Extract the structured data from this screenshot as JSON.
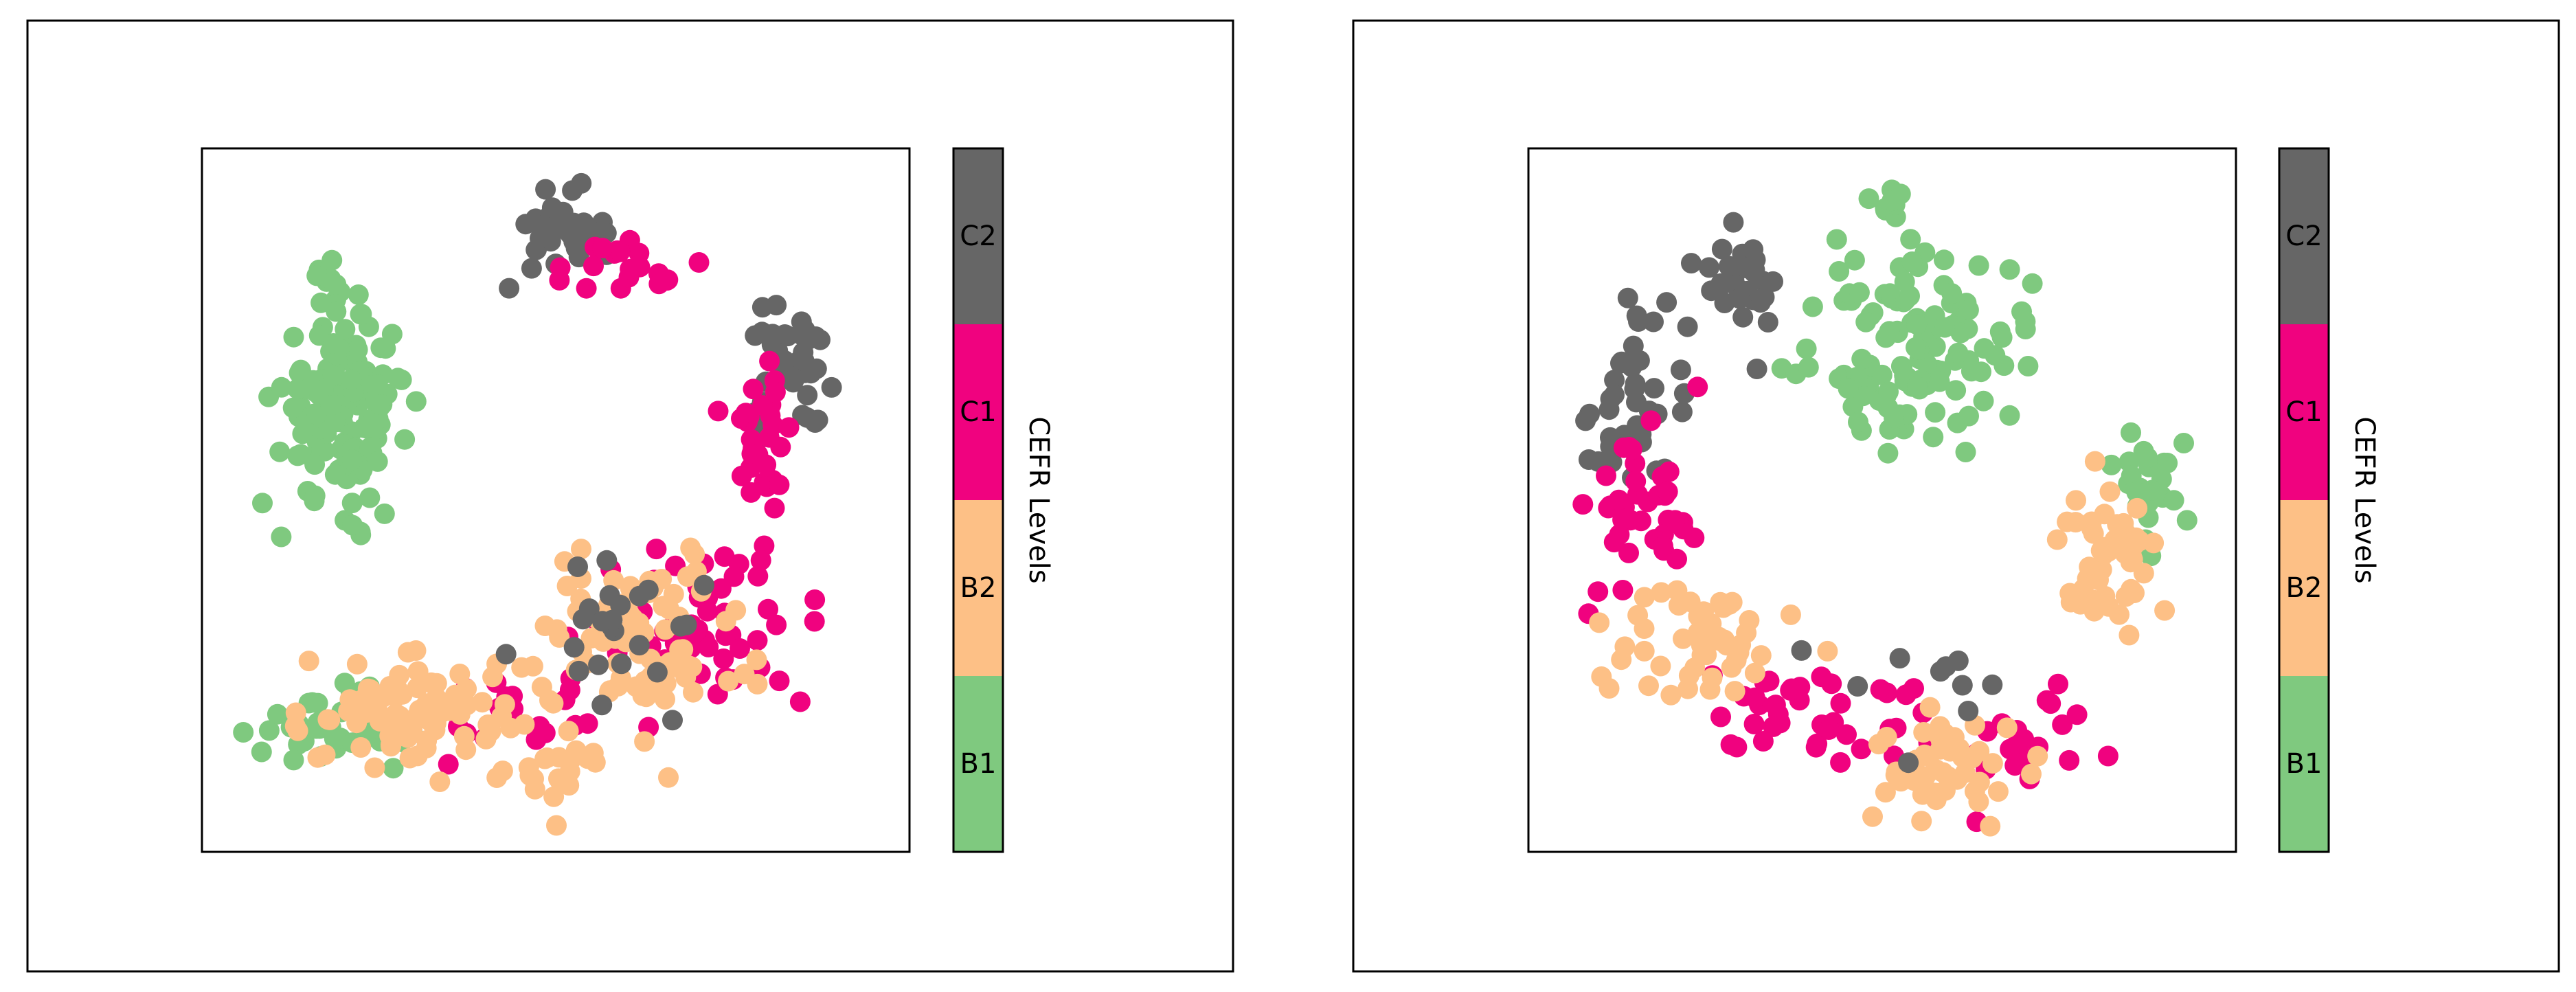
{
  "chart_data": [
    {
      "type": "scatter",
      "title": "",
      "xlabel": "",
      "ylabel": "",
      "grid": false,
      "axes_ticks": false,
      "colorbar": {
        "label": "CEFR Levels",
        "levels": [
          {
            "name": "C2",
            "color": "#666666"
          },
          {
            "name": "C1",
            "color": "#f0027f"
          },
          {
            "name": "B2",
            "color": "#fdc086"
          },
          {
            "name": "B1",
            "color": "#7fc97f"
          }
        ]
      },
      "clusters": [
        {
          "level": "B1",
          "x": 0.2,
          "y": 0.63,
          "sx": 0.08,
          "sy": 0.12,
          "n": 150
        },
        {
          "level": "B1",
          "x": 0.18,
          "y": 0.82,
          "sx": 0.02,
          "sy": 0.03,
          "n": 10
        },
        {
          "level": "B1",
          "x": 0.18,
          "y": 0.17,
          "sx": 0.1,
          "sy": 0.05,
          "n": 40
        },
        {
          "level": "C2",
          "x": 0.52,
          "y": 0.88,
          "sx": 0.08,
          "sy": 0.05,
          "n": 40
        },
        {
          "level": "C2",
          "x": 0.83,
          "y": 0.68,
          "sx": 0.05,
          "sy": 0.08,
          "n": 40
        },
        {
          "level": "C1",
          "x": 0.6,
          "y": 0.83,
          "sx": 0.1,
          "sy": 0.05,
          "n": 20
        },
        {
          "level": "C1",
          "x": 0.8,
          "y": 0.6,
          "sx": 0.08,
          "sy": 0.1,
          "n": 30
        },
        {
          "level": "C1",
          "x": 0.7,
          "y": 0.32,
          "sx": 0.14,
          "sy": 0.1,
          "n": 60
        },
        {
          "level": "C1",
          "x": 0.45,
          "y": 0.2,
          "sx": 0.1,
          "sy": 0.06,
          "n": 20
        },
        {
          "level": "B2",
          "x": 0.3,
          "y": 0.2,
          "sx": 0.14,
          "sy": 0.07,
          "n": 90
        },
        {
          "level": "B2",
          "x": 0.62,
          "y": 0.3,
          "sx": 0.14,
          "sy": 0.12,
          "n": 90
        },
        {
          "level": "B2",
          "x": 0.5,
          "y": 0.12,
          "sx": 0.06,
          "sy": 0.05,
          "n": 20
        },
        {
          "level": "C2",
          "x": 0.6,
          "y": 0.3,
          "sx": 0.12,
          "sy": 0.1,
          "n": 25
        }
      ]
    },
    {
      "type": "scatter",
      "title": "",
      "xlabel": "",
      "ylabel": "",
      "grid": false,
      "axes_ticks": false,
      "colorbar": {
        "label": "CEFR Levels",
        "levels": [
          {
            "name": "C2",
            "color": "#666666"
          },
          {
            "name": "C1",
            "color": "#f0027f"
          },
          {
            "name": "B2",
            "color": "#fdc086"
          },
          {
            "name": "B1",
            "color": "#7fc97f"
          }
        ]
      },
      "clusters": [
        {
          "level": "B1",
          "x": 0.55,
          "y": 0.72,
          "sx": 0.12,
          "sy": 0.12,
          "n": 130
        },
        {
          "level": "B1",
          "x": 0.51,
          "y": 0.92,
          "sx": 0.02,
          "sy": 0.02,
          "n": 8
        },
        {
          "level": "B1",
          "x": 0.88,
          "y": 0.52,
          "sx": 0.05,
          "sy": 0.1,
          "n": 25
        },
        {
          "level": "C2",
          "x": 0.15,
          "y": 0.65,
          "sx": 0.07,
          "sy": 0.12,
          "n": 40
        },
        {
          "level": "C2",
          "x": 0.3,
          "y": 0.82,
          "sx": 0.05,
          "sy": 0.08,
          "n": 30
        },
        {
          "level": "C1",
          "x": 0.15,
          "y": 0.5,
          "sx": 0.08,
          "sy": 0.12,
          "n": 40
        },
        {
          "level": "C1",
          "x": 0.4,
          "y": 0.2,
          "sx": 0.15,
          "sy": 0.08,
          "n": 40
        },
        {
          "level": "C1",
          "x": 0.7,
          "y": 0.15,
          "sx": 0.1,
          "sy": 0.07,
          "n": 20
        },
        {
          "level": "B2",
          "x": 0.25,
          "y": 0.3,
          "sx": 0.1,
          "sy": 0.08,
          "n": 50
        },
        {
          "level": "B2",
          "x": 0.6,
          "y": 0.12,
          "sx": 0.1,
          "sy": 0.06,
          "n": 50
        },
        {
          "level": "B2",
          "x": 0.82,
          "y": 0.42,
          "sx": 0.07,
          "sy": 0.1,
          "n": 50
        },
        {
          "level": "C2",
          "x": 0.55,
          "y": 0.25,
          "sx": 0.12,
          "sy": 0.1,
          "n": 10
        }
      ]
    }
  ]
}
